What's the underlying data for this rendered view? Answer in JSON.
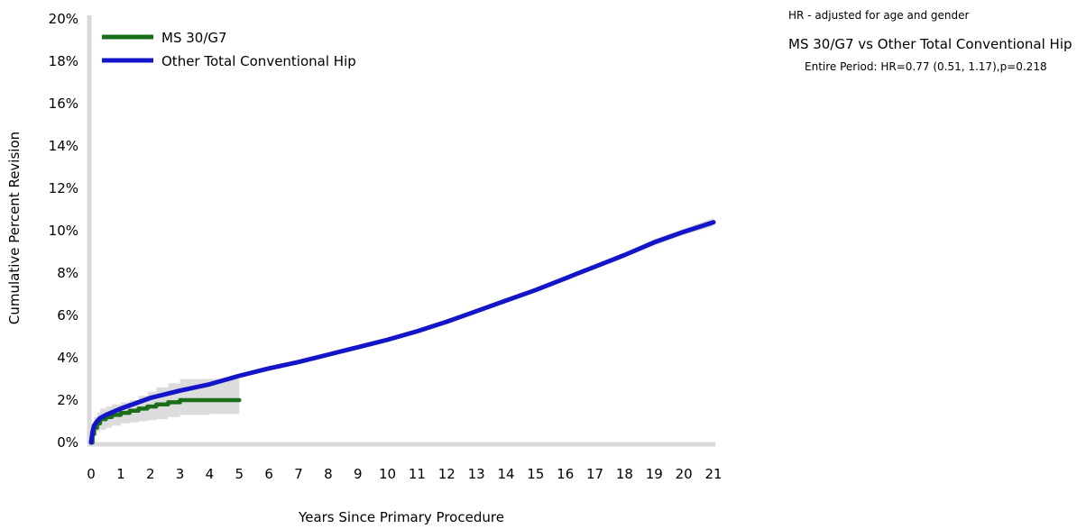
{
  "chart_data": {
    "type": "line",
    "title": "",
    "xlabel": "Years Since Primary Procedure",
    "ylabel": "Cumulative Percent Revision",
    "xlim": [
      0,
      21
    ],
    "ylim": [
      0,
      20
    ],
    "x_ticks": [
      0,
      1,
      2,
      3,
      4,
      5,
      6,
      7,
      8,
      9,
      10,
      11,
      12,
      13,
      14,
      15,
      16,
      17,
      18,
      19,
      20,
      21
    ],
    "y_ticks": [
      0,
      2,
      4,
      6,
      8,
      10,
      12,
      14,
      16,
      18,
      20
    ],
    "y_tick_labels": [
      "0%",
      "2%",
      "4%",
      "6%",
      "8%",
      "10%",
      "12%",
      "14%",
      "16%",
      "18%",
      "20%"
    ],
    "grid": false,
    "legend_position": "top-left",
    "series": [
      {
        "name": "MS 30/G7",
        "color": "#1a6e1a",
        "step": true,
        "x": [
          0,
          0.05,
          0.1,
          0.2,
          0.3,
          0.5,
          0.7,
          1.0,
          1.3,
          1.6,
          1.9,
          2.2,
          2.6,
          3.0,
          3.5,
          4.0,
          5.0
        ],
        "y": [
          0,
          0.4,
          0.7,
          0.9,
          1.1,
          1.2,
          1.3,
          1.4,
          1.5,
          1.6,
          1.7,
          1.8,
          1.9,
          2.0,
          2.0,
          2.0,
          2.0
        ],
        "ci_lower": [
          0,
          0.1,
          0.3,
          0.5,
          0.6,
          0.7,
          0.8,
          0.9,
          0.95,
          1.0,
          1.05,
          1.1,
          1.2,
          1.3,
          1.3,
          1.35,
          1.35
        ],
        "ci_upper": [
          0,
          0.8,
          1.2,
          1.4,
          1.6,
          1.7,
          1.8,
          1.9,
          2.0,
          2.2,
          2.4,
          2.6,
          2.8,
          3.0,
          3.0,
          3.0,
          3.0
        ]
      },
      {
        "name": "Other Total Conventional Hip",
        "color": "#1414c8",
        "step": false,
        "x": [
          0,
          0.05,
          0.1,
          0.2,
          0.3,
          0.5,
          0.75,
          1,
          1.5,
          2,
          3,
          4,
          5,
          6,
          7,
          8,
          9,
          10,
          11,
          12,
          13,
          14,
          15,
          16,
          17,
          18,
          19,
          20,
          21
        ],
        "y": [
          0,
          0.5,
          0.8,
          1.0,
          1.15,
          1.3,
          1.45,
          1.6,
          1.85,
          2.1,
          2.45,
          2.75,
          3.15,
          3.5,
          3.8,
          4.15,
          4.5,
          4.85,
          5.25,
          5.7,
          6.2,
          6.7,
          7.2,
          7.75,
          8.3,
          8.85,
          9.45,
          9.95,
          10.4
        ],
        "ci_lower": [
          0,
          0.45,
          0.75,
          0.95,
          1.1,
          1.25,
          1.4,
          1.55,
          1.8,
          2.05,
          2.4,
          2.7,
          3.1,
          3.45,
          3.75,
          4.1,
          4.45,
          4.8,
          5.2,
          5.65,
          6.15,
          6.65,
          7.15,
          7.7,
          8.2,
          8.75,
          9.3,
          9.8,
          10.2
        ],
        "ci_upper": [
          0,
          0.55,
          0.85,
          1.05,
          1.2,
          1.35,
          1.5,
          1.65,
          1.9,
          2.15,
          2.5,
          2.8,
          3.2,
          3.55,
          3.85,
          4.2,
          4.55,
          4.9,
          5.3,
          5.75,
          6.25,
          6.75,
          7.25,
          7.8,
          8.4,
          8.95,
          9.6,
          10.1,
          10.6
        ]
      }
    ],
    "axis_color": "#d9d9d9",
    "ci_color": "#dcdcdc"
  },
  "notes": {
    "hr_note": "HR - adjusted for age and gender",
    "comparison": "MS 30/G7 vs Other Total Conventional Hip",
    "entire_period": "Entire Period: HR=0.77 (0.51, 1.17),p=0.218"
  }
}
